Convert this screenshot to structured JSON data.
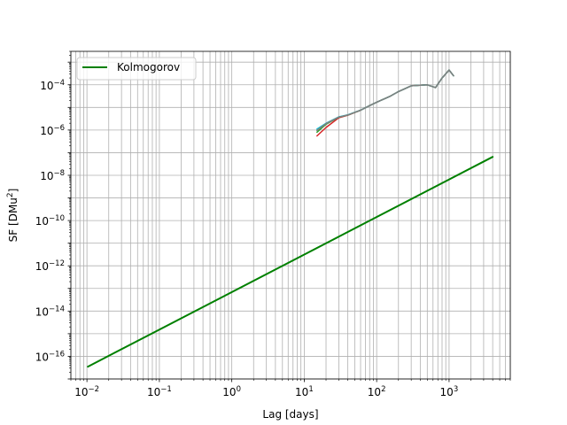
{
  "chart_data": {
    "type": "line",
    "title": "",
    "xlabel": "Lag [days]",
    "ylabel_base": "SF [DMu",
    "ylabel_exp": "2",
    "ylabel_close": "]",
    "xscale": "log",
    "yscale": "log",
    "xlim": [
      0.006,
      7000
    ],
    "ylim": [
      1e-17,
      0.003
    ],
    "grid": true,
    "legend_placement": "top-left",
    "x_ticks": [
      {
        "value": 0.01,
        "base": "10",
        "exp": "−2"
      },
      {
        "value": 0.1,
        "base": "10",
        "exp": "−1"
      },
      {
        "value": 1,
        "base": "10",
        "exp": "0"
      },
      {
        "value": 10,
        "base": "10",
        "exp": "1"
      },
      {
        "value": 100,
        "base": "10",
        "exp": "2"
      },
      {
        "value": 1000,
        "base": "10",
        "exp": "3"
      }
    ],
    "y_ticks": [
      {
        "value": 1e-16,
        "base": "10",
        "exp": "−16"
      },
      {
        "value": 1e-14,
        "base": "10",
        "exp": "−14"
      },
      {
        "value": 1e-12,
        "base": "10",
        "exp": "−12"
      },
      {
        "value": 1e-10,
        "base": "10",
        "exp": "−10"
      },
      {
        "value": 1e-08,
        "base": "10",
        "exp": "−8"
      },
      {
        "value": 1e-06,
        "base": "10",
        "exp": "−6"
      },
      {
        "value": 0.0001,
        "base": "10",
        "exp": "−4"
      }
    ],
    "series": [
      {
        "name": "Kolmogorov",
        "color": "#008000",
        "in_legend": true,
        "x": [
          0.0103,
          4000
        ],
        "y": [
          3.5e-17,
          6.5e-08
        ]
      },
      {
        "color": "#d62728",
        "in_legend": false,
        "x": [
          15,
          20,
          30,
          40,
          60,
          80,
          100,
          150,
          200,
          300,
          500,
          650,
          800,
          1000,
          1150
        ],
        "y": [
          5.5e-07,
          1.3e-06,
          3.5e-06,
          4.5e-06,
          7.5e-06,
          1.2e-05,
          1.7e-05,
          3e-05,
          5e-05,
          9e-05,
          0.0001,
          7.5e-05,
          0.0002,
          0.00045,
          0.00025
        ]
      },
      {
        "color": "#2ca02c",
        "in_legend": false,
        "x": [
          15,
          20,
          30,
          40,
          60,
          80,
          100,
          150,
          200,
          300,
          500,
          650,
          800,
          1000,
          1150
        ],
        "y": [
          8e-07,
          1.8e-06,
          3.7e-06,
          4.6e-06,
          7.5e-06,
          1.2e-05,
          1.7e-05,
          3e-05,
          5e-05,
          9e-05,
          0.0001,
          7.5e-05,
          0.0002,
          0.00045,
          0.00025
        ]
      },
      {
        "color": "#17becf",
        "in_legend": false,
        "x": [
          15,
          20,
          30,
          40,
          60,
          80,
          100,
          150,
          200,
          300,
          500,
          650,
          800,
          1000,
          1150
        ],
        "y": [
          1.1e-06,
          2e-06,
          3.8e-06,
          4.7e-06,
          7.6e-06,
          1.2e-05,
          1.7e-05,
          3e-05,
          5e-05,
          9e-05,
          0.0001,
          7.5e-05,
          0.0002,
          0.00045,
          0.00025
        ]
      },
      {
        "color": "#7f7f7f",
        "in_legend": false,
        "x": [
          15,
          20,
          30,
          40,
          60,
          80,
          100,
          150,
          200,
          300,
          500,
          650,
          800,
          1000,
          1150
        ],
        "y": [
          9.5e-07,
          1.9e-06,
          3.7e-06,
          4.6e-06,
          7.5e-06,
          1.2e-05,
          1.7e-05,
          3e-05,
          5e-05,
          9e-05,
          0.0001,
          7.5e-05,
          0.0002,
          0.00045,
          0.00025
        ]
      }
    ],
    "colors": {
      "grid": "#b0b0b0",
      "axes": "#000000",
      "legend_border": "#cccccc"
    }
  }
}
